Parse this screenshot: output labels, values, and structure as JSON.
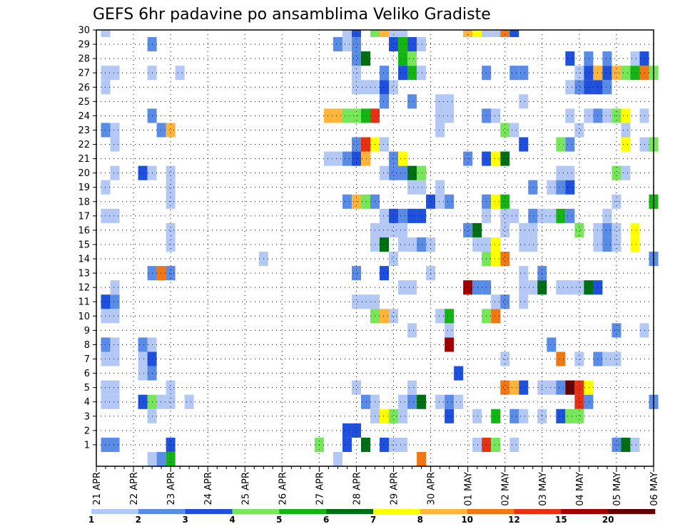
{
  "chart_data": {
    "type": "heatmap",
    "title": "GEFS 6hr padavine po ansamblima Veliko Gradiste",
    "xlabel": "",
    "ylabel": "",
    "x_tick_labels": [
      "21 APR",
      "22 APR",
      "23 APR",
      "24 APR",
      "25 APR",
      "26 APR",
      "27 APR",
      "28 APR",
      "29 APR",
      "30 APR",
      "01 MAY",
      "02 MAY",
      "03 MAY",
      "04 MAY",
      "05 MAY",
      "06 MAY"
    ],
    "x_units": "6-hour time steps from 21 APR 00 to 06 MAY 00 (4 steps per day)",
    "ylim": [
      0,
      30
    ],
    "y_tick_labels": [
      "1",
      "2",
      "3",
      "4",
      "5",
      "6",
      "7",
      "8",
      "9",
      "10",
      "11",
      "12",
      "13",
      "14",
      "15",
      "16",
      "17",
      "18",
      "19",
      "20",
      "21",
      "22",
      "23",
      "24",
      "25",
      "26",
      "27",
      "28",
      "29",
      "30"
    ],
    "grid": true,
    "colorbar": {
      "tick_labels": [
        "1",
        "2",
        "3",
        "4",
        "5",
        "6",
        "7",
        "8",
        "10",
        "12",
        "15",
        "20"
      ],
      "colors": [
        "#b4c8f5",
        "#5a8ce6",
        "#1e50dc",
        "#78e65a",
        "#14b414",
        "#006e14",
        "#ffff00",
        "#ffb43c",
        "#f07814",
        "#e63214",
        "#a00000",
        "#640000"
      ]
    },
    "step_cols": [
      "#b4c8f5",
      "#5a8ce6",
      "#1e50dc",
      "#78e65a",
      "#14b414",
      "#006e14",
      "#ffff00",
      "#ffb43c",
      "#f07814",
      "#e63214",
      "#a00000",
      "#640000"
    ],
    "rows": {
      "30": [
        [
          1,
          1
        ],
        [
          27,
          1
        ],
        [
          28,
          3
        ],
        [
          30,
          4
        ],
        [
          31,
          8
        ],
        [
          32,
          1
        ],
        [
          33,
          1
        ],
        [
          40,
          8
        ],
        [
          41,
          7
        ],
        [
          42,
          1
        ],
        [
          43,
          1
        ],
        [
          44,
          9
        ],
        [
          45,
          3
        ]
      ],
      "29": [
        [
          6,
          2
        ],
        [
          26,
          2
        ],
        [
          27,
          1
        ],
        [
          28,
          2
        ],
        [
          32,
          3
        ],
        [
          33,
          5
        ],
        [
          34,
          3
        ],
        [
          35,
          1
        ]
      ],
      "28": [
        [
          28,
          2
        ],
        [
          29,
          6
        ],
        [
          33,
          5
        ],
        [
          34,
          4
        ],
        [
          51,
          3
        ],
        [
          53,
          2
        ],
        [
          55,
          2
        ],
        [
          58,
          1
        ],
        [
          59,
          3
        ]
      ],
      "27": [
        [
          1,
          1
        ],
        [
          2,
          1
        ],
        [
          6,
          1
        ],
        [
          9,
          1
        ],
        [
          28,
          1
        ],
        [
          31,
          2
        ],
        [
          33,
          3
        ],
        [
          34,
          5
        ],
        [
          35,
          1
        ],
        [
          42,
          2
        ],
        [
          45,
          2
        ],
        [
          46,
          2
        ],
        [
          52,
          1
        ],
        [
          53,
          3
        ],
        [
          54,
          8
        ],
        [
          55,
          3
        ],
        [
          56,
          8
        ],
        [
          57,
          4
        ],
        [
          58,
          5
        ],
        [
          59,
          9
        ],
        [
          60,
          4
        ]
      ],
      "26": [
        [
          1,
          1
        ],
        [
          28,
          1
        ],
        [
          29,
          1
        ],
        [
          30,
          1
        ],
        [
          31,
          3
        ],
        [
          32,
          1
        ],
        [
          51,
          1
        ],
        [
          52,
          2
        ],
        [
          53,
          3
        ],
        [
          54,
          3
        ],
        [
          55,
          2
        ]
      ],
      "25": [
        [
          31,
          2
        ],
        [
          34,
          2
        ],
        [
          37,
          1
        ],
        [
          38,
          1
        ],
        [
          46,
          1
        ]
      ],
      "24": [
        [
          6,
          2
        ],
        [
          25,
          8
        ],
        [
          26,
          8
        ],
        [
          27,
          4
        ],
        [
          28,
          4
        ],
        [
          29,
          5
        ],
        [
          30,
          10
        ],
        [
          37,
          1
        ],
        [
          38,
          1
        ],
        [
          42,
          2
        ],
        [
          43,
          1
        ],
        [
          51,
          1
        ],
        [
          53,
          1
        ],
        [
          54,
          2
        ],
        [
          55,
          1
        ],
        [
          56,
          4
        ],
        [
          57,
          7
        ],
        [
          59,
          1
        ]
      ],
      "23": [
        [
          1,
          2
        ],
        [
          2,
          1
        ],
        [
          7,
          2
        ],
        [
          8,
          8
        ],
        [
          37,
          1
        ],
        [
          44,
          4
        ],
        [
          45,
          1
        ],
        [
          52,
          1
        ],
        [
          57,
          1
        ]
      ],
      "22": [
        [
          2,
          1
        ],
        [
          28,
          2
        ],
        [
          29,
          10
        ],
        [
          30,
          7
        ],
        [
          31,
          1
        ],
        [
          46,
          3
        ],
        [
          50,
          4
        ],
        [
          51,
          2
        ],
        [
          57,
          7
        ],
        [
          59,
          1
        ],
        [
          60,
          4
        ]
      ],
      "21": [
        [
          25,
          1
        ],
        [
          26,
          1
        ],
        [
          27,
          2
        ],
        [
          28,
          3
        ],
        [
          29,
          8
        ],
        [
          32,
          2
        ],
        [
          33,
          7
        ],
        [
          40,
          2
        ],
        [
          42,
          3
        ],
        [
          43,
          7
        ],
        [
          44,
          6
        ]
      ],
      "20": [
        [
          2,
          1
        ],
        [
          5,
          3
        ],
        [
          6,
          1
        ],
        [
          8,
          1
        ],
        [
          31,
          1
        ],
        [
          32,
          2
        ],
        [
          33,
          2
        ],
        [
          34,
          6
        ],
        [
          35,
          4
        ],
        [
          50,
          1
        ],
        [
          51,
          1
        ],
        [
          56,
          4
        ],
        [
          57,
          1
        ]
      ],
      "19": [
        [
          1,
          1
        ],
        [
          8,
          1
        ],
        [
          34,
          1
        ],
        [
          35,
          1
        ],
        [
          37,
          1
        ],
        [
          47,
          2
        ],
        [
          49,
          1
        ],
        [
          50,
          2
        ],
        [
          51,
          3
        ]
      ],
      "18": [
        [
          8,
          1
        ],
        [
          27,
          2
        ],
        [
          28,
          8
        ],
        [
          29,
          4
        ],
        [
          30,
          2
        ],
        [
          36,
          3
        ],
        [
          37,
          1
        ],
        [
          38,
          2
        ],
        [
          42,
          2
        ],
        [
          43,
          7
        ],
        [
          44,
          5
        ],
        [
          56,
          1
        ],
        [
          60,
          5
        ]
      ],
      "17": [
        [
          1,
          1
        ],
        [
          2,
          1
        ],
        [
          31,
          1
        ],
        [
          32,
          3
        ],
        [
          33,
          2
        ],
        [
          34,
          3
        ],
        [
          35,
          3
        ],
        [
          42,
          1
        ],
        [
          44,
          1
        ],
        [
          45,
          1
        ],
        [
          47,
          2
        ],
        [
          48,
          1
        ],
        [
          49,
          1
        ],
        [
          50,
          5
        ],
        [
          51,
          2
        ],
        [
          55,
          1
        ]
      ],
      "16": [
        [
          8,
          1
        ],
        [
          30,
          1
        ],
        [
          31,
          1
        ],
        [
          32,
          1
        ],
        [
          33,
          1
        ],
        [
          40,
          2
        ],
        [
          41,
          6
        ],
        [
          44,
          1
        ],
        [
          46,
          1
        ],
        [
          47,
          1
        ],
        [
          52,
          4
        ],
        [
          54,
          1
        ],
        [
          55,
          2
        ],
        [
          56,
          1
        ],
        [
          58,
          7
        ]
      ],
      "15": [
        [
          8,
          1
        ],
        [
          30,
          1
        ],
        [
          31,
          6
        ],
        [
          33,
          1
        ],
        [
          34,
          1
        ],
        [
          35,
          2
        ],
        [
          36,
          1
        ],
        [
          41,
          1
        ],
        [
          42,
          1
        ],
        [
          43,
          7
        ],
        [
          46,
          1
        ],
        [
          47,
          1
        ],
        [
          54,
          1
        ],
        [
          55,
          2
        ],
        [
          56,
          1
        ],
        [
          58,
          7
        ]
      ],
      "14": [
        [
          18,
          1
        ],
        [
          32,
          1
        ],
        [
          42,
          4
        ],
        [
          43,
          7
        ],
        [
          44,
          9
        ],
        [
          60,
          2
        ]
      ],
      "13": [
        [
          6,
          2
        ],
        [
          7,
          9
        ],
        [
          8,
          2
        ],
        [
          28,
          2
        ],
        [
          31,
          3
        ],
        [
          36,
          1
        ],
        [
          46,
          1
        ],
        [
          48,
          2
        ]
      ],
      "12": [
        [
          2,
          1
        ],
        [
          33,
          1
        ],
        [
          34,
          1
        ],
        [
          40,
          11
        ],
        [
          41,
          2
        ],
        [
          42,
          2
        ],
        [
          46,
          1
        ],
        [
          47,
          1
        ],
        [
          48,
          6
        ],
        [
          50,
          1
        ],
        [
          51,
          1
        ],
        [
          52,
          1
        ],
        [
          53,
          6
        ],
        [
          54,
          3
        ]
      ],
      "11": [
        [
          1,
          3
        ],
        [
          2,
          2
        ],
        [
          28,
          1
        ],
        [
          29,
          1
        ],
        [
          30,
          1
        ],
        [
          43,
          1
        ],
        [
          44,
          2
        ],
        [
          46,
          1
        ]
      ],
      "10": [
        [
          1,
          1
        ],
        [
          2,
          1
        ],
        [
          30,
          4
        ],
        [
          31,
          8
        ],
        [
          32,
          1
        ],
        [
          37,
          1
        ],
        [
          38,
          5
        ],
        [
          42,
          4
        ],
        [
          43,
          9
        ]
      ],
      "9": [
        [
          34,
          1
        ],
        [
          38,
          1
        ],
        [
          56,
          2
        ],
        [
          59,
          1
        ]
      ],
      "8": [
        [
          1,
          2
        ],
        [
          2,
          1
        ],
        [
          5,
          2
        ],
        [
          6,
          1
        ],
        [
          38,
          11
        ],
        [
          49,
          2
        ]
      ],
      "7": [
        [
          1,
          1
        ],
        [
          2,
          1
        ],
        [
          5,
          1
        ],
        [
          6,
          3
        ],
        [
          44,
          1
        ],
        [
          50,
          9
        ],
        [
          52,
          1
        ],
        [
          54,
          2
        ],
        [
          55,
          1
        ],
        [
          56,
          1
        ]
      ],
      "6": [
        [
          5,
          1
        ],
        [
          6,
          2
        ],
        [
          39,
          3
        ]
      ],
      "5": [
        [
          1,
          1
        ],
        [
          2,
          1
        ],
        [
          8,
          1
        ],
        [
          28,
          1
        ],
        [
          34,
          1
        ],
        [
          44,
          9
        ],
        [
          45,
          8
        ],
        [
          46,
          3
        ],
        [
          48,
          1
        ],
        [
          49,
          1
        ],
        [
          50,
          2
        ],
        [
          51,
          12
        ],
        [
          52,
          10
        ],
        [
          53,
          7
        ]
      ],
      "4": [
        [
          1,
          1
        ],
        [
          2,
          1
        ],
        [
          5,
          3
        ],
        [
          6,
          4
        ],
        [
          7,
          1
        ],
        [
          8,
          1
        ],
        [
          10,
          1
        ],
        [
          29,
          2
        ],
        [
          30,
          1
        ],
        [
          33,
          1
        ],
        [
          34,
          2
        ],
        [
          35,
          6
        ],
        [
          37,
          1
        ],
        [
          38,
          2
        ],
        [
          39,
          1
        ],
        [
          52,
          10
        ],
        [
          53,
          2
        ],
        [
          60,
          2
        ]
      ],
      "3": [
        [
          6,
          1
        ],
        [
          30,
          1
        ],
        [
          31,
          7
        ],
        [
          32,
          4
        ],
        [
          33,
          1
        ],
        [
          38,
          3
        ],
        [
          41,
          1
        ],
        [
          43,
          5
        ],
        [
          45,
          2
        ],
        [
          46,
          1
        ],
        [
          48,
          1
        ],
        [
          50,
          3
        ],
        [
          51,
          4
        ],
        [
          52,
          4
        ]
      ],
      "2": [
        [
          27,
          3
        ],
        [
          28,
          3
        ]
      ],
      "1": [
        [
          1,
          2
        ],
        [
          2,
          2
        ],
        [
          8,
          3
        ],
        [
          24,
          4
        ],
        [
          27,
          3
        ],
        [
          29,
          6
        ],
        [
          31,
          3
        ],
        [
          32,
          1
        ],
        [
          33,
          1
        ],
        [
          41,
          1
        ],
        [
          42,
          10
        ],
        [
          43,
          4
        ],
        [
          45,
          1
        ],
        [
          56,
          2
        ],
        [
          57,
          6
        ],
        [
          58,
          1
        ]
      ],
      "0": [
        [
          6,
          1
        ],
        [
          7,
          2
        ],
        [
          8,
          5
        ],
        [
          26,
          1
        ],
        [
          35,
          9
        ]
      ]
    }
  }
}
